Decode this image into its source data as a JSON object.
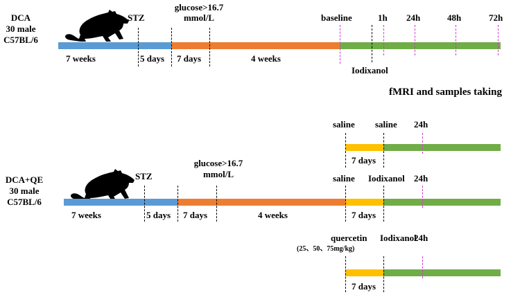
{
  "colors": {
    "blue": "#5b9bd5",
    "orange": "#ed7d31",
    "green": "#70ad47",
    "yellow": "#ffc000",
    "magenta": "#d633d6"
  },
  "group1": {
    "name": [
      "DCA",
      "30 male",
      "C57BL/6"
    ],
    "icon": "rat-icon",
    "stz": "STZ",
    "glucose": [
      "glucose>16.7",
      "mmol/L"
    ],
    "baseline": "baseline",
    "times": [
      "1h",
      "24h",
      "48h",
      "72h"
    ],
    "durations": [
      "7 weeks",
      "5 days",
      "7 days",
      "4 weeks"
    ],
    "iodixanol": "Iodixanol"
  },
  "fmri_label": "fMRI and samples taking",
  "group2": {
    "name": [
      "DCA+QE",
      "30 male",
      "C57BL/6"
    ],
    "icon": "rat-icon",
    "stz": "STZ",
    "glucose": [
      "glucose>16.7",
      "mmol/L"
    ],
    "durations": [
      "7 weeks",
      "5 days",
      "7 days",
      "4 weeks"
    ],
    "branch_saline": {
      "labels": [
        "saline",
        "saline",
        "24h"
      ],
      "duration": "7 days"
    },
    "branch_main": {
      "labels": [
        "saline",
        "Iodixanol",
        "24h"
      ],
      "duration": "7 days"
    },
    "branch_quercetin": {
      "label": "quercetin",
      "dose": "(25、50、75mg/kg)",
      "iodixanol": "Iodixanol",
      "time": "24h",
      "duration": "7 days"
    }
  }
}
